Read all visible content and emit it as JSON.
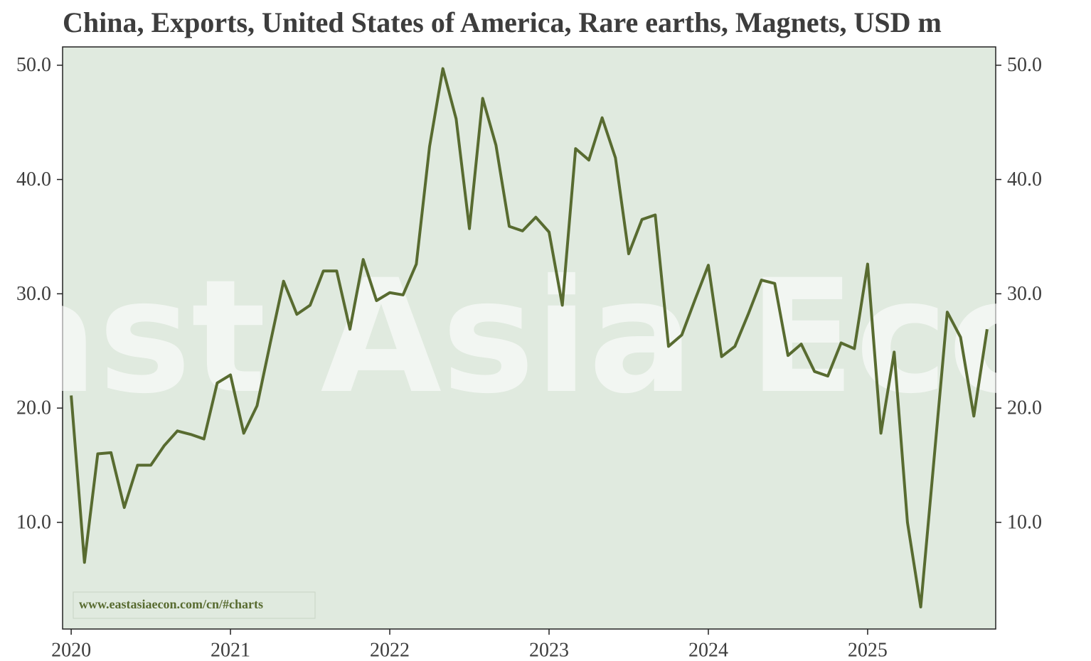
{
  "chart_data": {
    "type": "line",
    "title": "China, Exports, United States of America, Rare earths, Magnets, USD m",
    "watermark": "East Asia Econ",
    "source": "www.eastasiaecon.com/cn/#charts",
    "x": [
      2020,
      2020.0833,
      2020.1667,
      2020.25,
      2020.3333,
      2020.4167,
      2020.5,
      2020.5833,
      2020.6667,
      2020.75,
      2020.8333,
      2020.9167,
      2021,
      2021.0833,
      2021.1667,
      2021.25,
      2021.3333,
      2021.4167,
      2021.5,
      2021.5833,
      2021.6667,
      2021.75,
      2021.8333,
      2021.9167,
      2022,
      2022.0833,
      2022.1667,
      2022.25,
      2022.3333,
      2022.4167,
      2022.5,
      2022.5833,
      2022.6667,
      2022.75,
      2022.8333,
      2022.9167,
      2023,
      2023.0833,
      2023.1667,
      2023.25,
      2023.3333,
      2023.4167,
      2023.5,
      2023.5833,
      2023.6667,
      2023.75,
      2023.8333,
      2023.9167,
      2024,
      2024.0833,
      2024.1667,
      2024.25,
      2024.3333,
      2024.4167,
      2024.5,
      2024.5833,
      2024.6667,
      2024.75,
      2024.8333,
      2024.9167,
      2025,
      2025.0833,
      2025.1667,
      2025.25,
      2025.3333,
      2025.4167,
      2025.5,
      2025.5833,
      2025.6667,
      2025.75
    ],
    "series": [
      {
        "name": "Magnets",
        "color": "#586b30",
        "values": [
          21.1,
          6.5,
          16.0,
          16.1,
          11.3,
          15.0,
          15.0,
          16.7,
          18.0,
          17.7,
          17.3,
          22.2,
          22.9,
          17.8,
          20.2,
          25.7,
          31.1,
          28.2,
          29.0,
          32.0,
          32.0,
          26.9,
          33.0,
          29.4,
          30.1,
          29.9,
          32.6,
          42.9,
          49.7,
          45.3,
          35.7,
          47.1,
          43.0,
          35.9,
          35.5,
          36.7,
          35.4,
          29.0,
          42.7,
          41.7,
          45.4,
          41.9,
          33.5,
          36.5,
          36.9,
          25.4,
          26.4,
          29.5,
          32.5,
          24.5,
          25.4,
          28.2,
          31.2,
          30.9,
          24.6,
          25.6,
          23.2,
          22.8,
          25.7,
          25.2,
          32.6,
          17.8,
          24.9,
          10.0,
          2.6,
          15.5,
          28.4,
          26.2,
          19.3,
          26.9
        ]
      }
    ],
    "xlim": [
      2019.946,
      2025.804
    ],
    "xticks": [
      2020,
      2021,
      2022,
      2023,
      2024,
      2025
    ],
    "ylim": [
      0.67,
      51.6
    ],
    "yticks": [
      {
        "value": 10,
        "label": "10.0"
      },
      {
        "value": 20,
        "label": "20.0"
      },
      {
        "value": 30,
        "label": "30.0"
      },
      {
        "value": 40,
        "label": "40.0"
      },
      {
        "value": 50,
        "label": "50.0"
      }
    ],
    "background": "#e0eadf"
  }
}
